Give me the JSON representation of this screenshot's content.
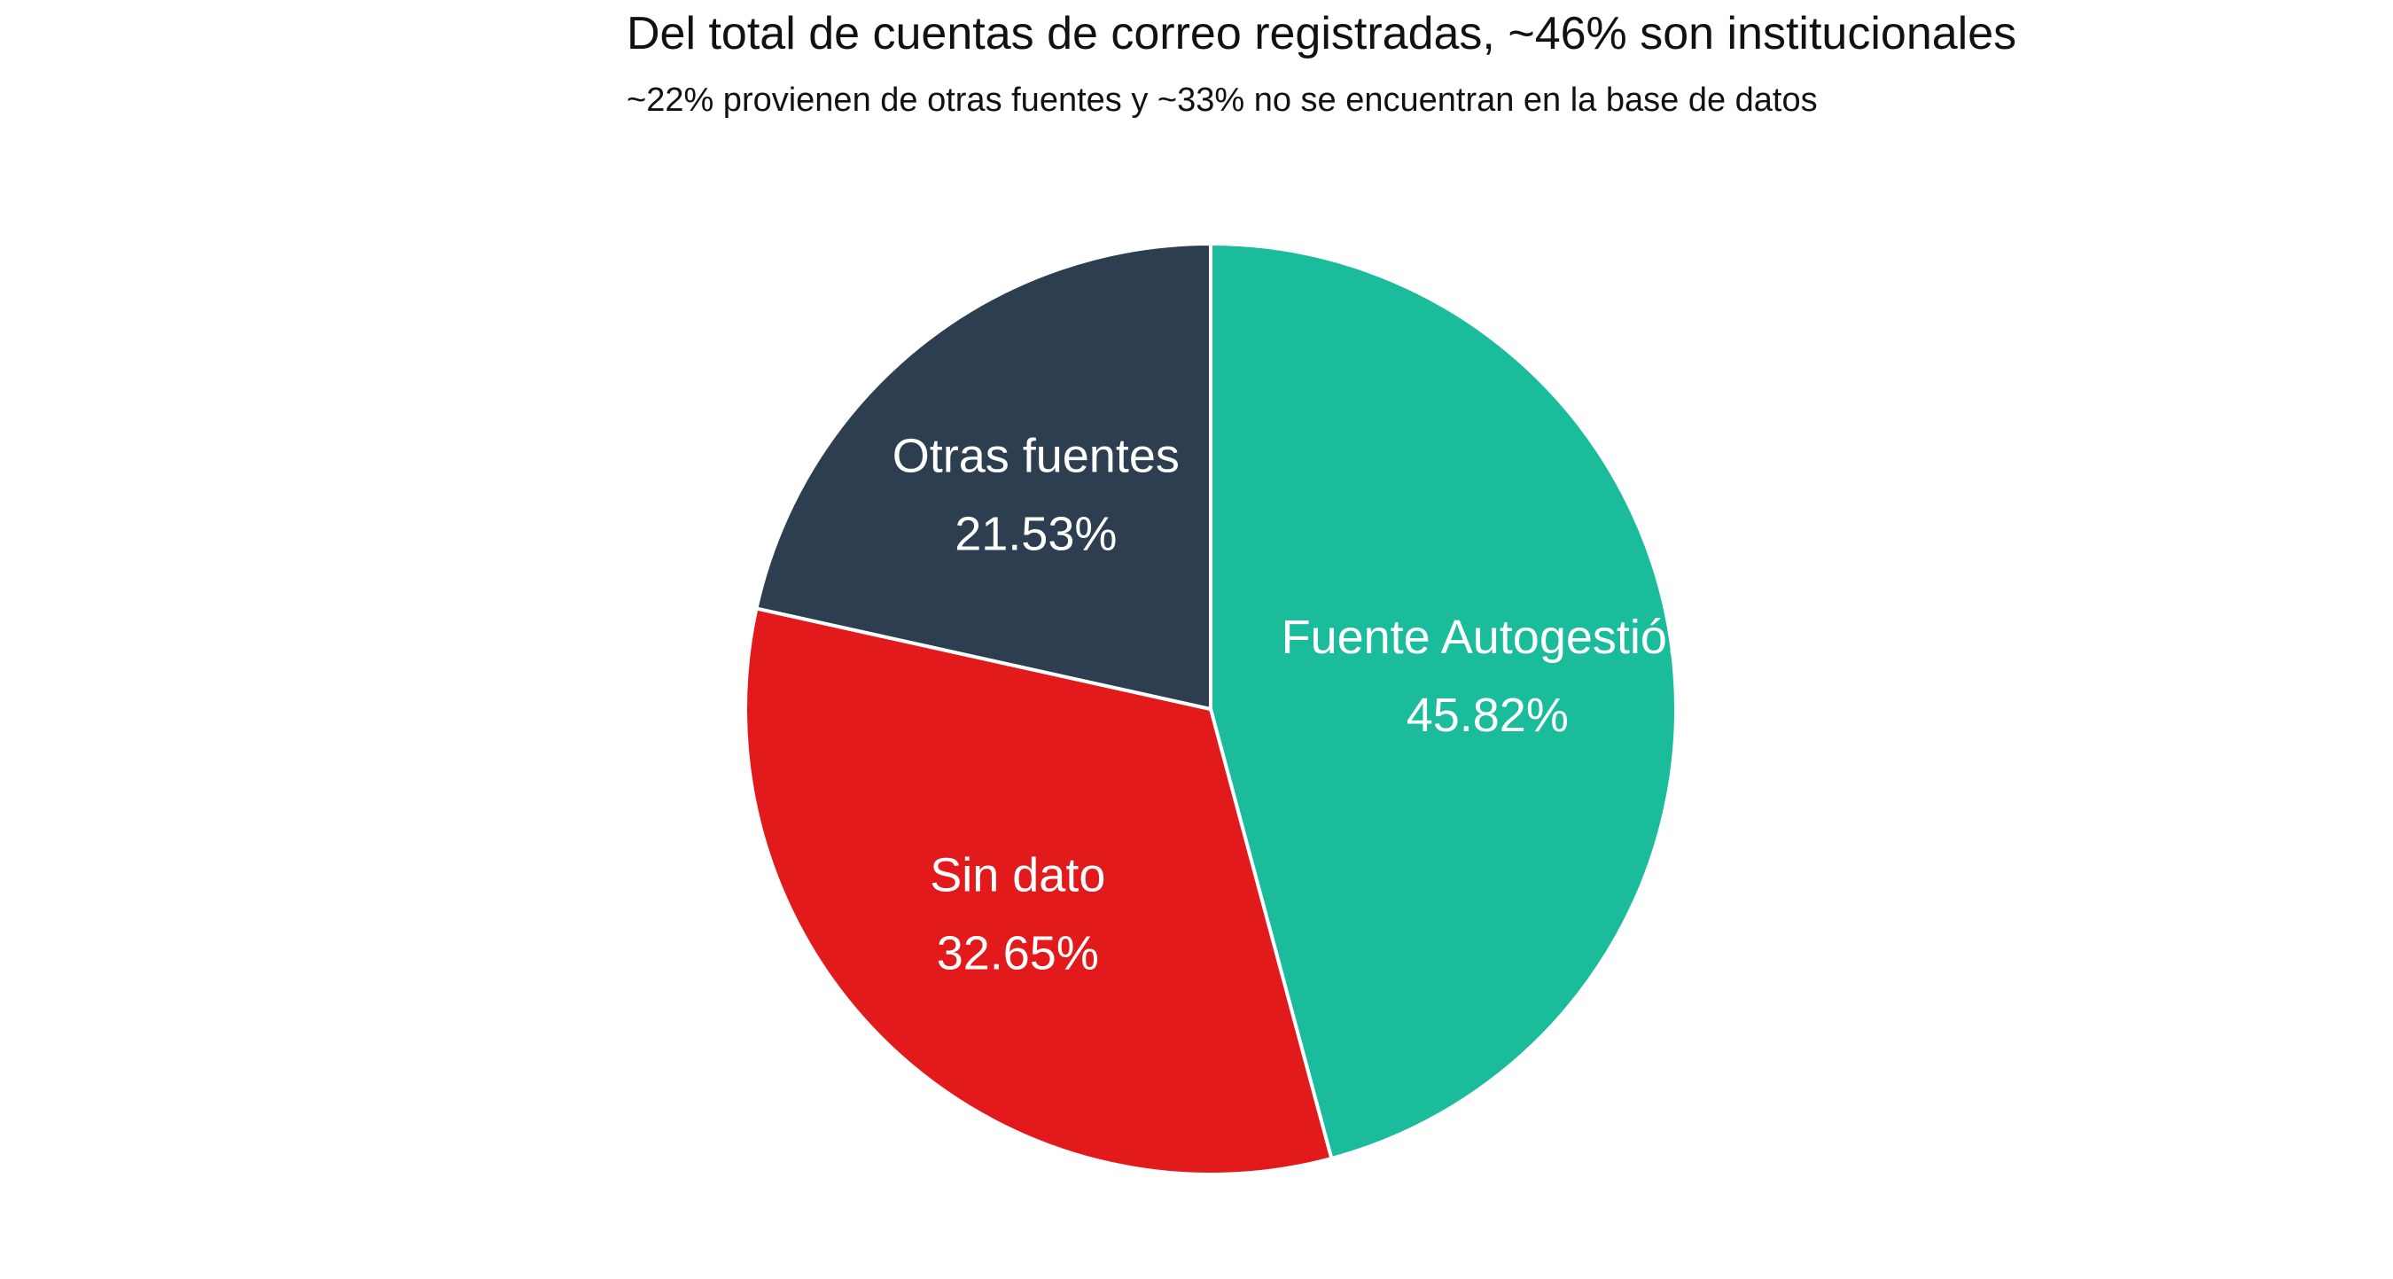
{
  "chart_data": {
    "type": "pie",
    "title": "Del total de cuentas de correo registradas, ~46% son institucionales",
    "subtitle": "~22% provienen de otras fuentes y ~33% no se encuentran en la base de datos",
    "slices": [
      {
        "label": "Fuente Autogestión",
        "value": 45.82,
        "display": "45.82%",
        "color": "#1abc9c"
      },
      {
        "label": "Sin dato",
        "value": 32.65,
        "display": "32.65%",
        "color": "#e31a1c"
      },
      {
        "label": "Otras fuentes",
        "value": 21.53,
        "display": "21.53%",
        "color": "#2c3e50"
      }
    ],
    "start_angle": "top",
    "direction": "clockwise",
    "legend": "none"
  }
}
